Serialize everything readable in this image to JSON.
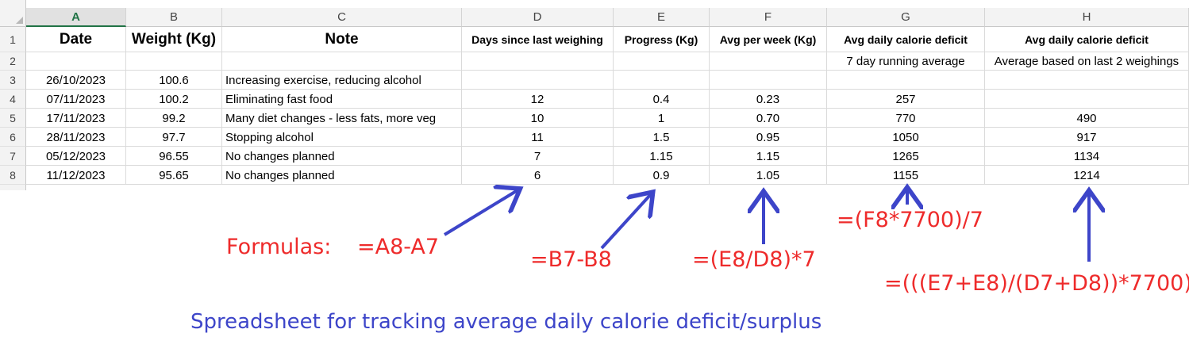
{
  "columns": [
    "A",
    "B",
    "C",
    "D",
    "E",
    "F",
    "G",
    "H"
  ],
  "selected_column": "A",
  "rows": [
    "1",
    "2",
    "3",
    "4",
    "5",
    "6",
    "7",
    "8"
  ],
  "headers": {
    "A": "Date",
    "B": "Weight (Kg)",
    "C": "Note",
    "D": "Days since last weighing",
    "E": "Progress (Kg)",
    "F": "Avg per week (Kg)",
    "G": "Avg daily calorie deficit",
    "H": "Avg daily calorie deficit"
  },
  "subheaders": {
    "G": "7 day running average",
    "H": "Average based on last 2 weighings"
  },
  "data_rows": [
    {
      "date": "26/10/2023",
      "weight": "100.6",
      "note": "Increasing exercise, reducing alcohol",
      "days": "",
      "progress": "",
      "avg_week": "",
      "deficit7": "",
      "deficit2": ""
    },
    {
      "date": "07/11/2023",
      "weight": "100.2",
      "note": "Eliminating fast food",
      "days": "12",
      "progress": "0.4",
      "avg_week": "0.23",
      "deficit7": "257",
      "deficit2": ""
    },
    {
      "date": "17/11/2023",
      "weight": "99.2",
      "note": "Many diet changes - less fats, more veg",
      "days": "10",
      "progress": "1",
      "avg_week": "0.70",
      "deficit7": "770",
      "deficit2": "490"
    },
    {
      "date": "28/11/2023",
      "weight": "97.7",
      "note": "Stopping alcohol",
      "days": "11",
      "progress": "1.5",
      "avg_week": "0.95",
      "deficit7": "1050",
      "deficit2": "917"
    },
    {
      "date": "05/12/2023",
      "weight": "96.55",
      "note": "No changes planned",
      "days": "7",
      "progress": "1.15",
      "avg_week": "1.15",
      "deficit7": "1265",
      "deficit2": "1134"
    },
    {
      "date": "11/12/2023",
      "weight": "95.65",
      "note": "No changes planned",
      "days": "6",
      "progress": "0.9",
      "avg_week": "1.05",
      "deficit7": "1155",
      "deficit2": "1214"
    }
  ],
  "annotations": {
    "formulas_label": "Formulas:",
    "formula_d": "=A8-A7",
    "formula_e": "=B7-B8",
    "formula_f": "=(E8/D8)*7",
    "formula_g": "=(F8*7700)/7",
    "formula_h": "=(((E7+E8)/(D7+D8))*7700)",
    "caption": "Spreadsheet for tracking average daily calorie deficit/surplus"
  },
  "colors": {
    "annotation_red": "#ee2b2b",
    "arrow_blue": "#3d45c9",
    "selected_header": "#217346"
  }
}
